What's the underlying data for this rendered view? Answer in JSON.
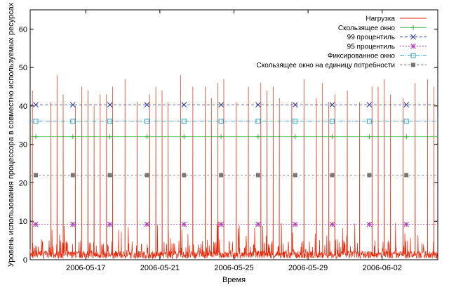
{
  "chart_data": {
    "type": "line",
    "title": "",
    "xlabel": "Время",
    "ylabel": "Уровень использования процессора в совместно используемых ресурсах",
    "x_range": [
      "2006-05-14",
      "2006-06-05"
    ],
    "ylim": [
      0,
      65
    ],
    "y_ticks": [
      0,
      10,
      20,
      30,
      40,
      50,
      60
    ],
    "x_ticks": [
      "2006-05-17",
      "2006-05-21",
      "2006-05-25",
      "2006-05-29",
      "2006-06-02"
    ],
    "grid": false,
    "legend_position": "top-right",
    "series": [
      {
        "name": "Нагрузка",
        "style": "line",
        "color": "#e8280a",
        "baseline": 1.5,
        "noise_max": 10,
        "spike_dates": [
          "2006-05-14",
          "2006-05-15",
          "2006-05-15",
          "2006-05-15",
          "2006-05-16",
          "2006-05-16",
          "2006-05-17",
          "2006-05-17",
          "2006-05-17",
          "2006-05-18",
          "2006-05-18",
          "2006-05-19",
          "2006-05-19",
          "2006-05-20",
          "2006-05-20",
          "2006-05-21",
          "2006-05-21",
          "2006-05-22",
          "2006-05-22",
          "2006-05-23",
          "2006-05-23",
          "2006-05-24",
          "2006-05-24",
          "2006-05-25",
          "2006-05-25",
          "2006-05-26",
          "2006-05-26",
          "2006-05-27",
          "2006-05-27",
          "2006-05-28",
          "2006-05-28",
          "2006-05-29",
          "2006-05-29",
          "2006-05-30",
          "2006-05-30",
          "2006-05-31",
          "2006-05-31",
          "2006-06-01",
          "2006-06-01",
          "2006-06-02",
          "2006-06-02",
          "2006-06-03",
          "2006-06-03",
          "2006-06-04",
          "2006-06-04"
        ],
        "spike_values": [
          44,
          48,
          43,
          41,
          40,
          45,
          44,
          40,
          43,
          43,
          45,
          41,
          47,
          43,
          45,
          44,
          41,
          45,
          48,
          45,
          42,
          46,
          47,
          45,
          41,
          46,
          44,
          45,
          42,
          47,
          41,
          42,
          46,
          41,
          43,
          41,
          44,
          45,
          45,
          47,
          43,
          46,
          42,
          47,
          45
        ]
      },
      {
        "name": "Скользящее окно",
        "style": "line+marker",
        "marker": "plus",
        "color": "#3cb043",
        "dash": "",
        "value": 32,
        "marker_dates": [
          "2006-05-14",
          "2006-05-16",
          "2006-05-18",
          "2006-05-20",
          "2006-05-22",
          "2006-05-24",
          "2006-05-26",
          "2006-05-28",
          "2006-05-30",
          "2006-06-01",
          "2006-06-03"
        ]
      },
      {
        "name": "99 процентиль",
        "style": "line+marker",
        "marker": "x",
        "color": "#2a3a9a",
        "dash": "4,3",
        "value": 40.3,
        "marker_dates": [
          "2006-05-14",
          "2006-05-16",
          "2006-05-18",
          "2006-05-20",
          "2006-05-22",
          "2006-05-24",
          "2006-05-26",
          "2006-05-28",
          "2006-05-30",
          "2006-06-01",
          "2006-06-03"
        ]
      },
      {
        "name": "95 процентиль",
        "style": "line+marker",
        "marker": "star",
        "color": "#b03cc0",
        "dash": "2,2",
        "value": 9.2,
        "marker_dates": [
          "2006-05-14",
          "2006-05-16",
          "2006-05-18",
          "2006-05-20",
          "2006-05-22",
          "2006-05-24",
          "2006-05-26",
          "2006-05-28",
          "2006-05-30",
          "2006-06-01",
          "2006-06-03"
        ]
      },
      {
        "name": "Фиксированное окно",
        "style": "line+marker",
        "marker": "square-open",
        "color": "#2aa6c8",
        "dash": "6,2,1,2",
        "value": 36,
        "marker_dates": [
          "2006-05-14",
          "2006-05-16",
          "2006-05-18",
          "2006-05-20",
          "2006-05-22",
          "2006-05-24",
          "2006-05-26",
          "2006-05-28",
          "2006-05-30",
          "2006-06-01",
          "2006-06-03"
        ]
      },
      {
        "name": "Скользящее окно на единицу потребности",
        "style": "line+marker",
        "marker": "square-filled",
        "color": "#777777",
        "dash": "3,3",
        "value": 22,
        "marker_dates": [
          "2006-05-14",
          "2006-05-16",
          "2006-05-18",
          "2006-05-20",
          "2006-05-22",
          "2006-05-24",
          "2006-05-26",
          "2006-05-28",
          "2006-05-30",
          "2006-06-01",
          "2006-06-03"
        ]
      }
    ]
  }
}
